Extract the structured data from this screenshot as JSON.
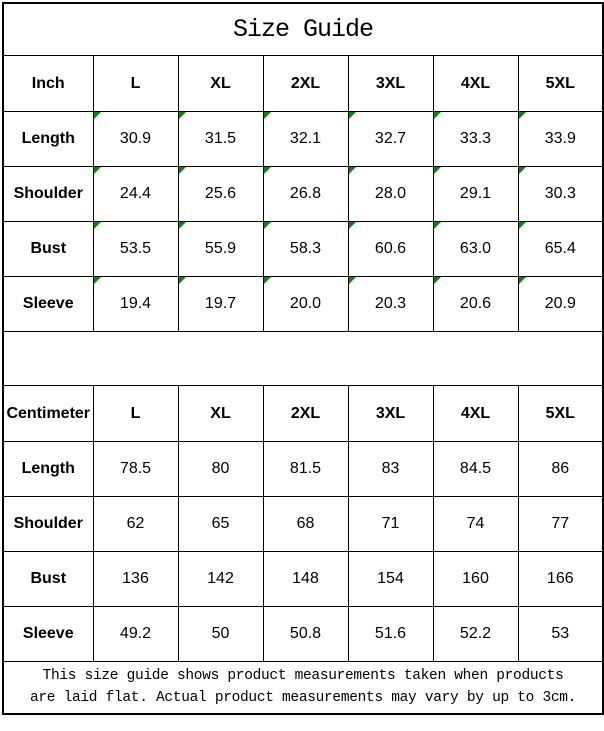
{
  "page_title": "Size Guide",
  "inch_table": {
    "unit_label": "Inch",
    "size_headers": [
      "L",
      "XL",
      "2XL",
      "3XL",
      "4XL",
      "5XL"
    ],
    "rows": [
      {
        "label": "Length",
        "values": [
          "30.9",
          "31.5",
          "32.1",
          "32.7",
          "33.3",
          "33.9"
        ]
      },
      {
        "label": "Shoulder",
        "values": [
          "24.4",
          "25.6",
          "26.8",
          "28.0",
          "29.1",
          "30.3"
        ]
      },
      {
        "label": "Bust",
        "values": [
          "53.5",
          "55.9",
          "58.3",
          "60.6",
          "63.0",
          "65.4"
        ]
      },
      {
        "label": "Sleeve",
        "values": [
          "19.4",
          "19.7",
          "20.0",
          "20.3",
          "20.6",
          "20.9"
        ]
      }
    ],
    "has_corner_markers": true
  },
  "centimeter_table": {
    "unit_label": "Centimeter",
    "size_headers": [
      "L",
      "XL",
      "2XL",
      "3XL",
      "4XL",
      "5XL"
    ],
    "rows": [
      {
        "label": "Length",
        "values": [
          "78.5",
          "80",
          "81.5",
          "83",
          "84.5",
          "86"
        ]
      },
      {
        "label": "Shoulder",
        "values": [
          "62",
          "65",
          "68",
          "71",
          "74",
          "77"
        ]
      },
      {
        "label": "Bust",
        "values": [
          "136",
          "142",
          "148",
          "154",
          "160",
          "166"
        ]
      },
      {
        "label": "Sleeve",
        "values": [
          "49.2",
          "50",
          "50.8",
          "51.6",
          "52.2",
          "53"
        ]
      }
    ],
    "has_corner_markers": false
  },
  "footer_note": {
    "line1": "This size guide shows product measurements taken when products",
    "line2": "are laid flat. Actual product measurements may vary by up to 3cm."
  },
  "colors": {
    "border": "#000000",
    "background": "#ffffff",
    "text": "#000000",
    "cell_marker_green": "#118211"
  }
}
